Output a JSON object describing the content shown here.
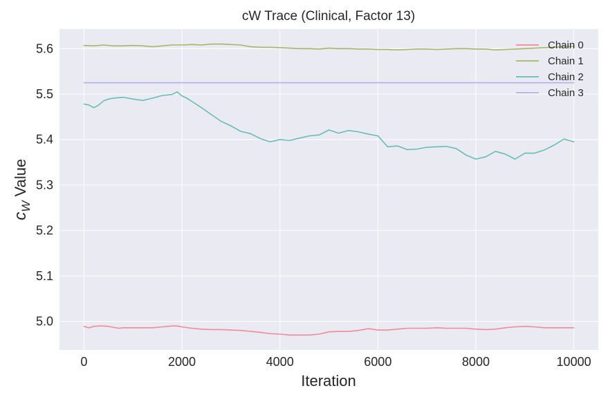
{
  "chart_data": {
    "type": "line",
    "title": "cW Trace (Clinical, Factor 13)",
    "xlabel": "Iteration",
    "ylabel_main": "c",
    "ylabel_sub": "W",
    "ylabel_rest": " Value",
    "xlim": [
      -500,
      10500
    ],
    "ylim": [
      4.937,
      5.643
    ],
    "xticks": [
      0,
      2000,
      4000,
      6000,
      8000,
      10000
    ],
    "xtick_labels": [
      "0",
      "2000",
      "4000",
      "6000",
      "8000",
      "10000"
    ],
    "yticks": [
      5.0,
      5.1,
      5.2,
      5.3,
      5.4,
      5.5,
      5.6
    ],
    "ytick_labels": [
      "5.0",
      "5.1",
      "5.2",
      "5.3",
      "5.4",
      "5.5",
      "5.6"
    ],
    "grid": true,
    "legend_position": "top-right",
    "series": [
      {
        "name": "Chain 0",
        "color": "#f08a96",
        "x": [
          0,
          100,
          200,
          300,
          400,
          500,
          600,
          700,
          800,
          1000,
          1200,
          1400,
          1600,
          1800,
          1900,
          2000,
          2200,
          2400,
          2600,
          2800,
          3000,
          3200,
          3400,
          3600,
          3800,
          4000,
          4200,
          4400,
          4600,
          4800,
          5000,
          5200,
          5400,
          5600,
          5800,
          6000,
          6200,
          6400,
          6600,
          6800,
          7000,
          7200,
          7400,
          7600,
          7800,
          8000,
          8200,
          8400,
          8600,
          8800,
          9000,
          9200,
          9400,
          9600,
          9800,
          10000
        ],
        "y": [
          4.989,
          4.986,
          4.989,
          4.99,
          4.99,
          4.989,
          4.987,
          4.985,
          4.986,
          4.986,
          4.986,
          4.986,
          4.988,
          4.99,
          4.99,
          4.988,
          4.985,
          4.983,
          4.982,
          4.982,
          4.981,
          4.98,
          4.978,
          4.976,
          4.973,
          4.972,
          4.97,
          4.97,
          4.97,
          4.972,
          4.977,
          4.978,
          4.978,
          4.98,
          4.984,
          4.981,
          4.981,
          4.983,
          4.985,
          4.985,
          4.985,
          4.986,
          4.985,
          4.985,
          4.985,
          4.983,
          4.982,
          4.983,
          4.986,
          4.988,
          4.989,
          4.988,
          4.986,
          4.986,
          4.986,
          4.986
        ]
      },
      {
        "name": "Chain 1",
        "color": "#a8b466",
        "x": [
          0,
          200,
          400,
          600,
          800,
          1000,
          1200,
          1400,
          1600,
          1800,
          2000,
          2200,
          2400,
          2600,
          2800,
          3000,
          3200,
          3400,
          3600,
          3800,
          4000,
          4200,
          4400,
          4600,
          4800,
          5000,
          5200,
          5400,
          5600,
          5800,
          6000,
          6200,
          6400,
          6600,
          6800,
          7000,
          7200,
          7400,
          7600,
          7800,
          8000,
          8200,
          8400,
          8600,
          8800,
          9000,
          9200,
          9400,
          9600,
          9800,
          10000
        ],
        "y": [
          5.607,
          5.606,
          5.608,
          5.606,
          5.606,
          5.607,
          5.606,
          5.604,
          5.606,
          5.608,
          5.608,
          5.609,
          5.608,
          5.61,
          5.61,
          5.609,
          5.608,
          5.604,
          5.603,
          5.603,
          5.602,
          5.601,
          5.6,
          5.6,
          5.599,
          5.601,
          5.6,
          5.6,
          5.599,
          5.599,
          5.598,
          5.598,
          5.597,
          5.598,
          5.599,
          5.599,
          5.598,
          5.599,
          5.6,
          5.6,
          5.599,
          5.599,
          5.597,
          5.598,
          5.599,
          5.6,
          5.601,
          5.602,
          5.603,
          5.604,
          5.605
        ]
      },
      {
        "name": "Chain 2",
        "color": "#66bdb3",
        "x": [
          0,
          100,
          200,
          300,
          400,
          500,
          600,
          800,
          1000,
          1200,
          1400,
          1600,
          1800,
          1900,
          2000,
          2100,
          2200,
          2400,
          2600,
          2800,
          3000,
          3200,
          3400,
          3600,
          3800,
          4000,
          4200,
          4400,
          4600,
          4800,
          5000,
          5200,
          5400,
          5600,
          5800,
          6000,
          6200,
          6400,
          6600,
          6800,
          7000,
          7200,
          7400,
          7600,
          7800,
          8000,
          8200,
          8400,
          8600,
          8800,
          9000,
          9200,
          9400,
          9600,
          9800,
          10000
        ],
        "y": [
          5.478,
          5.476,
          5.47,
          5.476,
          5.485,
          5.489,
          5.491,
          5.493,
          5.489,
          5.486,
          5.491,
          5.497,
          5.499,
          5.505,
          5.496,
          5.491,
          5.484,
          5.47,
          5.455,
          5.44,
          5.43,
          5.418,
          5.413,
          5.402,
          5.395,
          5.4,
          5.398,
          5.403,
          5.408,
          5.41,
          5.421,
          5.414,
          5.42,
          5.417,
          5.412,
          5.408,
          5.384,
          5.386,
          5.378,
          5.379,
          5.383,
          5.384,
          5.385,
          5.38,
          5.366,
          5.357,
          5.362,
          5.374,
          5.368,
          5.357,
          5.37,
          5.37,
          5.377,
          5.388,
          5.401,
          5.395
        ]
      },
      {
        "name": "Chain 3",
        "color": "#b0b0f0",
        "x": [
          0,
          10000
        ],
        "y": [
          5.525,
          5.525
        ]
      }
    ]
  }
}
